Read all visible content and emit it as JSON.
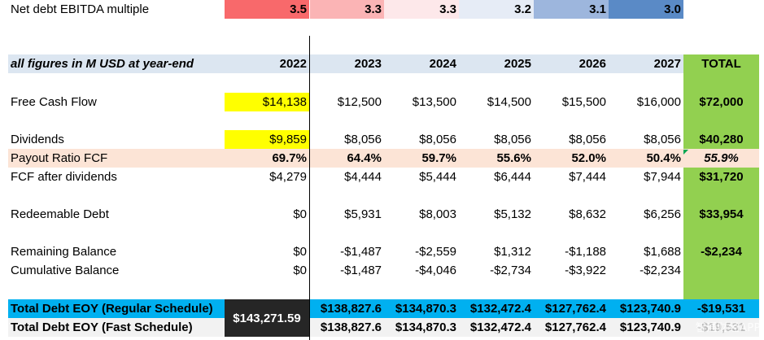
{
  "ebitda_row": {
    "label": "Net debt EBITDA multiple",
    "values": [
      "3.5",
      "3.3",
      "3.3",
      "3.2",
      "3.1",
      "3.0"
    ],
    "colors": [
      "#f8696b",
      "#fbb4b5",
      "#fde8ea",
      "#e6ecf6",
      "#9db6dd",
      "#5a8ac6"
    ]
  },
  "header": {
    "label": "all figures in M USD at year-end",
    "years": [
      "2022",
      "2023",
      "2024",
      "2025",
      "2026",
      "2027"
    ],
    "total": "TOTAL"
  },
  "rows": {
    "fcf": {
      "label": "Free Cash Flow",
      "values": [
        "$14,138",
        "$12,500",
        "$13,500",
        "$14,500",
        "$15,500",
        "$16,000"
      ],
      "total": "$72,000"
    },
    "dividends": {
      "label": "Dividends",
      "values": [
        "$9,859",
        "$8,056",
        "$8,056",
        "$8,056",
        "$8,056",
        "$8,056"
      ],
      "total": "$40,280"
    },
    "payout": {
      "label": "Payout Ratio FCF",
      "values": [
        "69.7%",
        "64.4%",
        "59.7%",
        "55.6%",
        "52.0%",
        "50.4%"
      ],
      "total": "55.9%"
    },
    "fcf_after": {
      "label": "FCF after dividends",
      "values": [
        "$4,279",
        "$4,444",
        "$5,444",
        "$6,444",
        "$7,444",
        "$7,944"
      ],
      "total": "$31,720"
    },
    "redeemable": {
      "label": "Redeemable Debt",
      "values": [
        "$0",
        "$5,931",
        "$8,003",
        "$5,132",
        "$8,632",
        "$6,256"
      ],
      "total": "$33,954"
    },
    "remaining": {
      "label": "Remaining Balance",
      "values": [
        "$0",
        "-$1,487",
        "-$2,559",
        "$1,312",
        "-$1,188",
        "$1,688"
      ],
      "total": "-$2,234"
    },
    "cumulative": {
      "label": "Cumulative Balance",
      "values": [
        "$0",
        "-$1,487",
        "-$4,046",
        "-$2,734",
        "-$3,922",
        "-$2,234"
      ],
      "total": ""
    },
    "debt_regular": {
      "label": "Total Debt EOY (Regular Schedule)",
      "values": [
        "$138,827.6",
        "$134,870.3",
        "$132,472.4",
        "$127,762.4",
        "$123,740.9"
      ],
      "total": "-$19,531"
    },
    "debt_fast": {
      "label": "Total Debt EOY (Fast Schedule)",
      "values": [
        "$138,827.6",
        "$134,870.3",
        "$132,472.4",
        "$127,762.4",
        "$123,740.9"
      ],
      "total": "-$19,531"
    },
    "debt_2022_merged": "$143,271.59"
  },
  "watermark": "智通财经APP",
  "colors": {
    "header_band": "#dce6f1",
    "total_green": "#92d050",
    "highlight_yellow": "#ffff00",
    "payout_peach": "#fce4d6",
    "debt_blue": "#00b0f0",
    "debt_gray": "#f2f2f2",
    "merged_black": "#262626"
  }
}
